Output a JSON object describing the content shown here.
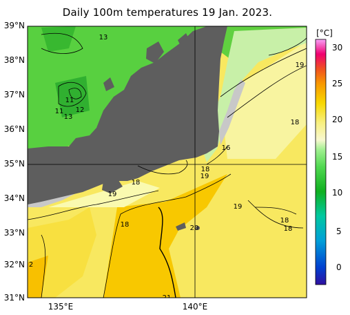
{
  "title": "Daily 100m temperatures 19 Jan. 2023.",
  "lat_labels": [
    "39°N",
    "38°N",
    "37°N",
    "36°N",
    "35°N",
    "34°N",
    "33°N",
    "32°N",
    "31°N"
  ],
  "lon_labels": [
    "135°E",
    "140°E"
  ],
  "colorbar": {
    "unit": "[°C]",
    "ticks": [
      "30",
      "25",
      "20",
      "15",
      "10",
      "5",
      "0"
    ],
    "range": [
      -3,
      31
    ],
    "colors": [
      "#3010a0",
      "#0050d8",
      "#00a0d8",
      "#00c8a0",
      "#10b020",
      "#40d040",
      "#90e870",
      "#f8f8c8",
      "#f8f0a0",
      "#f8e020",
      "#f8b000",
      "#f07000",
      "#f03030",
      "#f00080",
      "#f8a0f0"
    ]
  },
  "contour_labels": [
    "13",
    "11",
    "11",
    "12",
    "13",
    "19",
    "18",
    "16",
    "18",
    "19",
    "18",
    "19",
    "18",
    "20",
    "19",
    "18",
    "18",
    "21",
    "2"
  ],
  "colors": {
    "land": "#5e5e5e",
    "shallow": "#c8c8c8"
  }
}
